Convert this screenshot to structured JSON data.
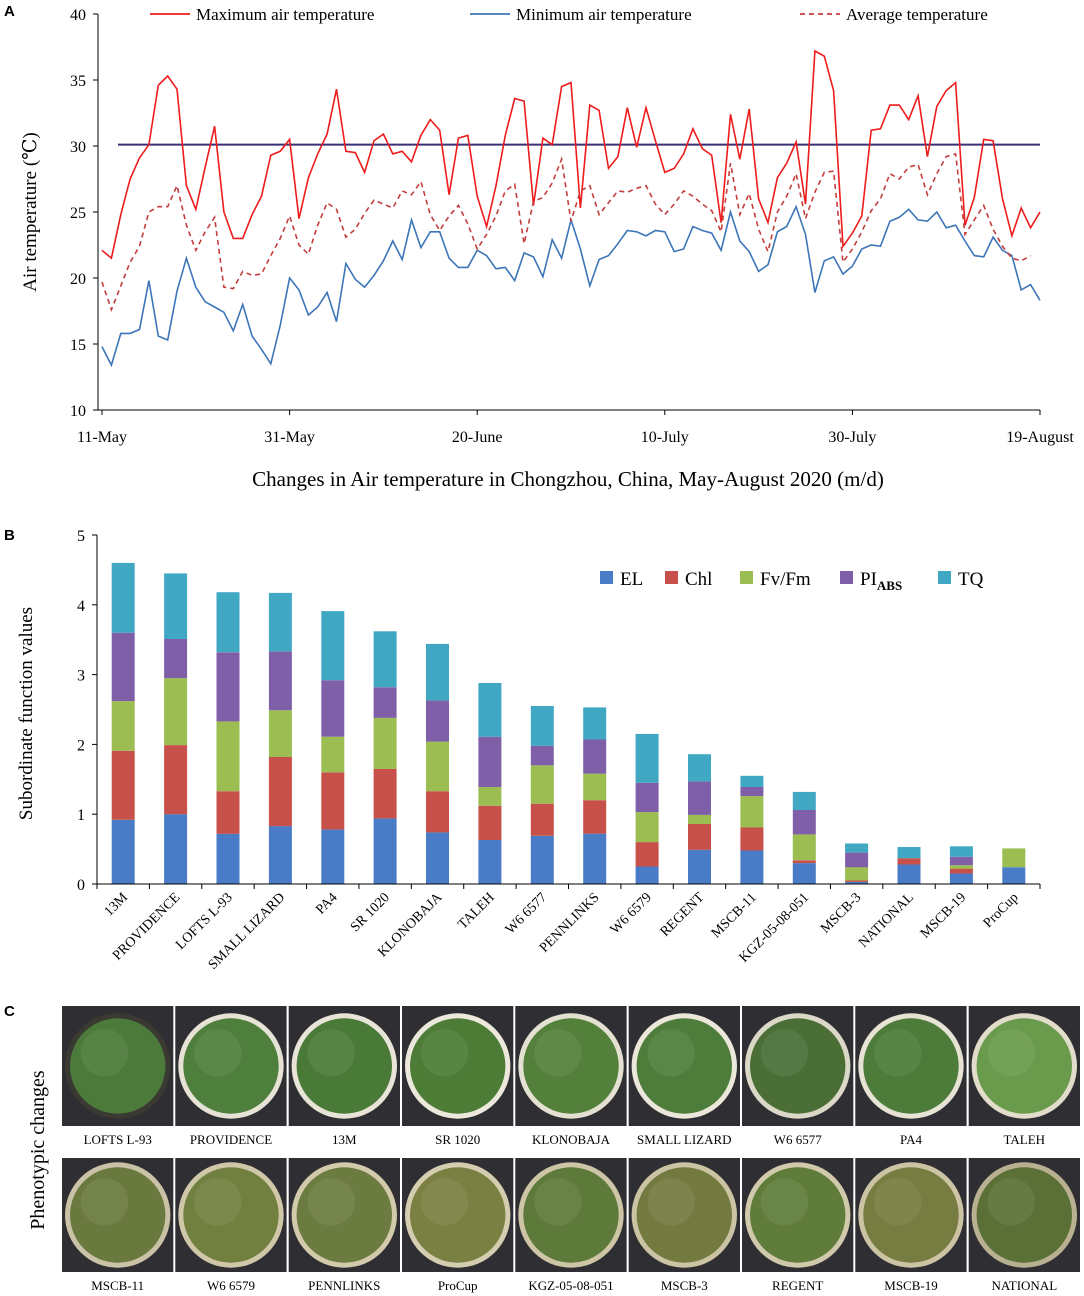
{
  "panel_a": {
    "letter": "A",
    "chart_data": {
      "type": "line",
      "title": "",
      "xlabel": "Changes in Air temperature in Chongzhou, China, May-August 2020 (m/d)",
      "ylabel": "Air temperature (℃)",
      "ylim": [
        10,
        40
      ],
      "yticks": [
        10,
        15,
        20,
        25,
        30,
        35,
        40
      ],
      "x_ticks": [
        {
          "label": "11-May",
          "day": 0
        },
        {
          "label": "31-May",
          "day": 20
        },
        {
          "label": "20-June",
          "day": 40
        },
        {
          "label": "10-July",
          "day": 60
        },
        {
          "label": "30-July",
          "day": 80
        },
        {
          "label": "19-August",
          "day": 100
        }
      ],
      "threshold": {
        "value": 30.1,
        "color": "#3a2e75"
      },
      "series": [
        {
          "name": "Maximum air temperature",
          "color": "#ee1c1c",
          "dash": "",
          "values": [
            22.1,
            21.5,
            24.8,
            27.5,
            29.1,
            30.1,
            34.6,
            35.3,
            34.3,
            27.0,
            25.2,
            28.4,
            31.5,
            25.0,
            23.0,
            23.0,
            24.8,
            26.2,
            29.3,
            29.6,
            30.5,
            24.5,
            27.6,
            29.4,
            30.9,
            34.3,
            29.6,
            29.5,
            28.0,
            30.4,
            30.9,
            29.4,
            29.6,
            28.8,
            30.8,
            32.0,
            31.2,
            26.3,
            30.6,
            30.8,
            26.2,
            23.9,
            27.0,
            30.8,
            33.6,
            33.4,
            25.5,
            30.6,
            30.1,
            34.5,
            34.8,
            25.3,
            33.1,
            32.7,
            28.3,
            29.2,
            32.9,
            29.9,
            32.9,
            30.4,
            28.0,
            28.3,
            29.4,
            31.3,
            29.8,
            29.3,
            24.2,
            32.4,
            29.0,
            32.8,
            26.0,
            24.2,
            27.6,
            28.7,
            30.3,
            25.6,
            37.2,
            36.8,
            34.2,
            22.4,
            23.4,
            24.7,
            31.2,
            31.3,
            33.1,
            33.1,
            32.0,
            33.8,
            29.2,
            33.0,
            34.2,
            34.8,
            24.0,
            26.1,
            30.5,
            30.4,
            26.0,
            23.2,
            25.3,
            23.8,
            25.0
          ]
        },
        {
          "name": "Minimum air temperature",
          "color": "#3c75b8",
          "dash": "",
          "values": [
            14.8,
            13.4,
            15.8,
            15.8,
            16.1,
            19.8,
            15.6,
            15.3,
            19.0,
            21.5,
            19.3,
            18.2,
            17.8,
            17.4,
            16.0,
            18.0,
            15.6,
            14.6,
            13.5,
            16.4,
            20.0,
            19.1,
            17.2,
            17.8,
            18.9,
            16.7,
            21.1,
            19.9,
            19.3,
            20.2,
            21.3,
            22.8,
            21.4,
            24.4,
            22.3,
            23.5,
            23.5,
            21.5,
            20.8,
            20.8,
            22.1,
            21.7,
            20.7,
            20.8,
            19.8,
            21.9,
            21.6,
            20.1,
            22.9,
            21.5,
            24.4,
            22.2,
            19.4,
            21.4,
            21.7,
            22.6,
            23.6,
            23.5,
            23.2,
            23.6,
            23.5,
            22.0,
            22.2,
            23.9,
            23.6,
            23.4,
            22.1,
            25.0,
            22.8,
            22.0,
            20.5,
            21.0,
            23.5,
            23.9,
            25.4,
            23.3,
            18.9,
            21.3,
            21.6,
            20.3,
            20.9,
            22.2,
            22.5,
            22.4,
            24.3,
            24.6,
            25.2,
            24.4,
            24.3,
            25.0,
            23.8,
            24.0,
            22.8,
            21.7,
            21.6,
            23.1,
            22.1,
            21.7,
            19.1,
            19.5,
            18.3
          ]
        },
        {
          "name": "Average temperature",
          "color": "#c43d3d",
          "dash": "5,4",
          "values": [
            19.7,
            17.6,
            19.4,
            21.2,
            22.4,
            25.0,
            25.4,
            25.4,
            27.0,
            24.0,
            22.1,
            23.5,
            24.6,
            19.3,
            19.2,
            20.5,
            20.2,
            20.3,
            21.7,
            23.0,
            24.7,
            22.5,
            21.8,
            24.0,
            25.7,
            25.2,
            23.1,
            23.7,
            24.9,
            25.9,
            25.6,
            25.3,
            26.6,
            26.3,
            27.3,
            24.8,
            23.6,
            24.7,
            25.5,
            24.1,
            22.2,
            23.3,
            24.7,
            26.6,
            27.1,
            22.6,
            25.8,
            26.1,
            27.2,
            29.0,
            24.3,
            26.6,
            27.0,
            24.8,
            25.7,
            26.6,
            26.5,
            26.8,
            27.0,
            25.6,
            24.8,
            25.6,
            26.6,
            26.2,
            25.6,
            25.1,
            23.5,
            28.7,
            24.8,
            26.4,
            23.7,
            22.0,
            25.0,
            26.2,
            27.9,
            24.5,
            26.5,
            28.0,
            28.1,
            21.2,
            22.2,
            23.5,
            25.1,
            26.0,
            27.9,
            27.5,
            28.4,
            28.6,
            26.3,
            27.9,
            29.2,
            29.4,
            23.3,
            24.4,
            25.5,
            23.7,
            22.4,
            21.5,
            21.3,
            21.7
          ]
        }
      ]
    }
  },
  "panel_b": {
    "letter": "B",
    "chart_data": {
      "type": "bar",
      "stacked": true,
      "title": "",
      "xlabel": "",
      "ylabel": "Subordinate function values",
      "ylim": [
        0,
        5
      ],
      "yticks": [
        0,
        1,
        2,
        3,
        4,
        5
      ],
      "categories": [
        "13M",
        "PROVIDENCE",
        "LOFTS L-93",
        "SMALL LIZARD",
        "PA4",
        "SR 1020",
        "KLONOBAJA",
        "TALEH",
        "W6 6577",
        "PENNLINKS",
        "W6 6579",
        "REGENT",
        "MSCB-11",
        "KGZ-05-08-051",
        "MSCB-3",
        "NATIONAL",
        "MSCB-19",
        "ProCup"
      ],
      "legend": [
        {
          "label": "EL",
          "sub": ""
        },
        {
          "label": "Chl",
          "sub": ""
        },
        {
          "label": "Fv/Fm",
          "sub": ""
        },
        {
          "label": "PI",
          "sub": "ABS"
        },
        {
          "label": "TQ",
          "sub": ""
        }
      ],
      "series": [
        {
          "name": "EL",
          "color": "#4a7bc6",
          "values": [
            0.92,
            1.0,
            0.72,
            0.83,
            0.78,
            0.94,
            0.74,
            0.63,
            0.69,
            0.72,
            0.25,
            0.49,
            0.48,
            0.3,
            0.03,
            0.28,
            0.15,
            0.24
          ]
        },
        {
          "name": "Chl",
          "color": "#c8504b",
          "values": [
            0.99,
            0.99,
            0.61,
            0.99,
            0.82,
            0.71,
            0.59,
            0.49,
            0.46,
            0.48,
            0.35,
            0.37,
            0.33,
            0.04,
            0.02,
            0.09,
            0.07,
            0.0
          ]
        },
        {
          "name": "Fv/Fm",
          "color": "#9bbd51",
          "values": [
            0.71,
            0.96,
            1.0,
            0.67,
            0.51,
            0.73,
            0.71,
            0.27,
            0.55,
            0.38,
            0.43,
            0.13,
            0.45,
            0.37,
            0.19,
            0.0,
            0.05,
            0.27
          ]
        },
        {
          "name": "PI ABS",
          "color": "#7f60a8",
          "values": [
            0.98,
            0.56,
            0.99,
            0.84,
            0.81,
            0.44,
            0.59,
            0.72,
            0.28,
            0.49,
            0.42,
            0.48,
            0.13,
            0.35,
            0.21,
            0.0,
            0.12,
            0.0
          ]
        },
        {
          "name": "TQ",
          "color": "#41a8c4",
          "values": [
            1.0,
            0.94,
            0.86,
            0.84,
            0.99,
            0.8,
            0.81,
            0.77,
            0.57,
            0.46,
            0.7,
            0.39,
            0.16,
            0.26,
            0.13,
            0.16,
            0.15,
            0.0
          ]
        }
      ]
    }
  },
  "panel_c": {
    "letter": "C",
    "ylabel": "Phenotypic changes",
    "row1": [
      {
        "label": "LOFTS L-93",
        "fill": "#4c7a3a",
        "ring": "#3a3a33"
      },
      {
        "label": "PROVIDENCE",
        "fill": "#4f7f3c",
        "ring": "#e6e2d6"
      },
      {
        "label": "13M",
        "fill": "#4a7a38",
        "ring": "#e8e4d8"
      },
      {
        "label": "SR 1020",
        "fill": "#4d7c36",
        "ring": "#ece8dc"
      },
      {
        "label": "KLONOBAJA",
        "fill": "#53803a",
        "ring": "#e4e0d2"
      },
      {
        "label": "SMALL LIZARD",
        "fill": "#4e7d3b",
        "ring": "#ebe7da"
      },
      {
        "label": "W6 6577",
        "fill": "#4a6e36",
        "ring": "#dcd8c8"
      },
      {
        "label": "PA4",
        "fill": "#4c7b3a",
        "ring": "#e6e2d4"
      },
      {
        "label": "TALEH",
        "fill": "#6a9a4c",
        "ring": "#e2dccb"
      }
    ],
    "row2": [
      {
        "label": "MSCB-11",
        "fill": "#6a7a3e",
        "ring": "#c9c2a6"
      },
      {
        "label": "W6 6579",
        "fill": "#72803f",
        "ring": "#cfc7a8"
      },
      {
        "label": "PENNLINKS",
        "fill": "#6c7c40",
        "ring": "#d2caab"
      },
      {
        "label": "ProCup",
        "fill": "#7a7f42",
        "ring": "#d4cdb0"
      },
      {
        "label": "KGZ-05-08-051",
        "fill": "#5e7a3a",
        "ring": "#cdc5a6"
      },
      {
        "label": "MSCB-3",
        "fill": "#737a40",
        "ring": "#cbc3a3"
      },
      {
        "label": "REGENT",
        "fill": "#5f7c3b",
        "ring": "#d0c9ab"
      },
      {
        "label": "MSCB-19",
        "fill": "#777c41",
        "ring": "#cbc3a4"
      },
      {
        "label": "NATIONAL",
        "fill": "#5a7036",
        "ring": "#b8b090"
      }
    ]
  }
}
